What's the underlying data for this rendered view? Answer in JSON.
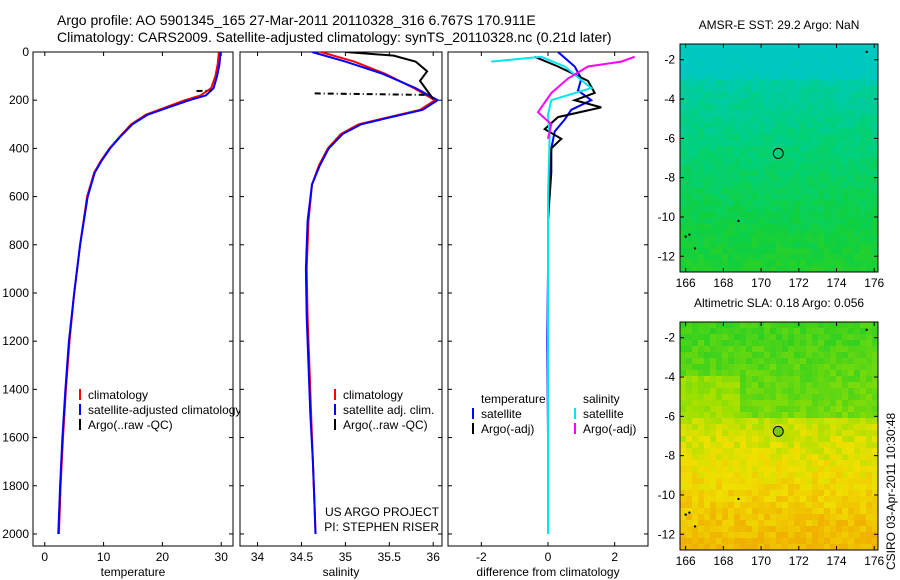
{
  "header": {
    "line1": "Argo profile: AO 5901345_165 27-Mar-2011 20110328_316 6.767S 170.911E",
    "line2": "Climatology: CARS2009. Satellite-adjusted climatology: synTS_20110328.nc (0.21d later)"
  },
  "side_stamp": "CSIRO 03-Apr-2011 10:30:48",
  "colors": {
    "climatology": "#ff0000",
    "satellite": "#0000ff",
    "argo": "#000000",
    "salinity_satellite": "#00e5ee",
    "salinity_argo": "#ff00ff"
  },
  "chart_data": [
    {
      "type": "line",
      "panel": "temperature",
      "xlabel": "temperature",
      "ylabel": "",
      "xlim": [
        -2,
        32
      ],
      "ylim": [
        2050,
        0
      ],
      "xticks": [
        0,
        10,
        20,
        30
      ],
      "yticks": [
        0,
        200,
        400,
        600,
        800,
        1000,
        1200,
        1400,
        1600,
        1800,
        2000
      ],
      "legend": [
        "climatology",
        "satellite-adjusted climatology",
        "Argo(..raw -QC)"
      ],
      "series": [
        {
          "name": "climatology",
          "color": "#ff0000",
          "x": [
            29.6,
            29.4,
            29.0,
            28.3,
            26.5,
            23.8,
            20.5,
            17.2,
            14.7,
            12.8,
            11.0,
            9.6,
            8.4,
            7.2,
            6.0,
            5.0,
            4.2,
            3.6,
            3.1,
            2.7,
            2.4
          ],
          "y": [
            0,
            50,
            100,
            150,
            180,
            200,
            230,
            260,
            300,
            350,
            400,
            450,
            500,
            600,
            800,
            1000,
            1200,
            1400,
            1600,
            1800,
            2000
          ]
        },
        {
          "name": "satellite-adjusted climatology",
          "color": "#0000ff",
          "x": [
            29.9,
            29.7,
            29.3,
            28.7,
            27.4,
            24.6,
            21.0,
            17.5,
            14.9,
            12.9,
            11.1,
            9.7,
            8.5,
            7.3,
            6.0,
            5.0,
            4.1,
            3.5,
            3.0,
            2.6,
            2.3
          ],
          "y": [
            0,
            50,
            100,
            150,
            180,
            200,
            230,
            260,
            300,
            350,
            400,
            450,
            500,
            600,
            800,
            1000,
            1200,
            1400,
            1600,
            1800,
            2000
          ]
        },
        {
          "name": "Argo(..raw -QC)",
          "color": "#000000",
          "dashed": true,
          "x": [
            25.8,
            28.4
          ],
          "y": [
            162,
            160
          ]
        }
      ]
    },
    {
      "type": "line",
      "panel": "salinity",
      "xlabel": "salinity",
      "ylabel": "",
      "xlim": [
        33.8,
        36.1
      ],
      "ylim": [
        2050,
        0
      ],
      "xticks": [
        34,
        34.5,
        35,
        35.5,
        36
      ],
      "legend": [
        "climatology",
        "satellite adj. clim.",
        "Argo(..raw -QC)"
      ],
      "annotation": [
        "US ARGO PROJECT",
        "PI: STEPHEN RISER"
      ],
      "series": [
        {
          "name": "climatology",
          "color": "#ff0000",
          "x": [
            34.72,
            35.1,
            35.45,
            35.78,
            36.02,
            35.85,
            35.5,
            35.15,
            34.95,
            34.8,
            34.7,
            34.62,
            34.58,
            34.56,
            34.57,
            34.59,
            34.61,
            34.63,
            34.65,
            34.66
          ],
          "y": [
            0,
            40,
            90,
            150,
            200,
            240,
            270,
            300,
            340,
            400,
            470,
            550,
            700,
            900,
            1100,
            1300,
            1500,
            1700,
            1900,
            2000
          ]
        },
        {
          "name": "satellite adj. clim.",
          "color": "#0000ff",
          "x": [
            34.62,
            35.0,
            35.42,
            35.8,
            36.05,
            35.88,
            35.52,
            35.18,
            34.97,
            34.81,
            34.71,
            34.62,
            34.57,
            34.55,
            34.56,
            34.58,
            34.6,
            34.63,
            34.65,
            34.66
          ],
          "y": [
            0,
            40,
            90,
            150,
            200,
            240,
            270,
            300,
            340,
            400,
            470,
            550,
            700,
            900,
            1100,
            1300,
            1500,
            1700,
            1900,
            2000
          ]
        },
        {
          "name": "Argo(..raw -QC)",
          "color": "#000000",
          "x": [
            35.0,
            35.55,
            35.8,
            35.93,
            35.85,
            36.0
          ],
          "y": [
            0,
            15,
            40,
            80,
            120,
            195
          ]
        },
        {
          "name": "Argo(..raw -QC)",
          "color": "#000000",
          "dashed": true,
          "x": [
            34.65,
            35.92
          ],
          "y": [
            172,
            178
          ]
        }
      ]
    },
    {
      "type": "line",
      "panel": "difference",
      "xlabel": "difference from climatology",
      "ylabel": "",
      "xlim": [
        -3,
        3
      ],
      "ylim": [
        2050,
        0
      ],
      "xticks": [
        -2,
        0,
        2
      ],
      "legend": [
        "temperature",
        "satellite",
        "Argo(-adj)",
        "salinity",
        "satellite",
        "Argo(-adj)"
      ],
      "series": [
        {
          "name": "temperature satellite",
          "color": "#0000ff",
          "x": [
            0.3,
            0.8,
            1.0,
            0.9,
            1.3,
            0.7,
            0.5,
            0.2,
            0.1,
            0.05,
            0.0,
            0.0,
            -0.02,
            0.0,
            0.0
          ],
          "y": [
            0,
            60,
            110,
            160,
            200,
            240,
            280,
            330,
            400,
            500,
            700,
            900,
            1200,
            1600,
            2000
          ]
        },
        {
          "name": "temperature Argo(-adj)",
          "color": "#000000",
          "x": [
            -0.4,
            0.3,
            1.2,
            1.4,
            0.8,
            1.6,
            0.3,
            -0.1,
            0.4,
            0.1,
            0.1,
            0.0,
            0.0,
            0.0
          ],
          "y": [
            20,
            60,
            120,
            170,
            200,
            230,
            270,
            320,
            360,
            400,
            500,
            700,
            1000,
            1400
          ]
        },
        {
          "name": "salinity satellite",
          "color": "#00e5ee",
          "x": [
            -1.7,
            -0.2,
            0.5,
            1.3,
            0.1,
            0.0,
            0.05,
            0.0,
            0.0,
            0.0
          ],
          "y": [
            40,
            20,
            60,
            150,
            200,
            260,
            350,
            600,
            1200,
            2000
          ]
        },
        {
          "name": "salinity Argo(-adj)",
          "color": "#ff00ff",
          "x": [
            2.6,
            2.2,
            1.2,
            0.6,
            0.1,
            -0.3,
            0.1,
            0.0
          ],
          "y": [
            20,
            40,
            60,
            110,
            170,
            250,
            300,
            360
          ]
        }
      ]
    },
    {
      "type": "heatmap",
      "panel": "AMSR-E SST",
      "title": "AMSR-E SST: 29.2 Argo: NaN",
      "xlim": [
        165.7,
        176.2
      ],
      "ylim": [
        -12.8,
        -1.2
      ],
      "xticks": [
        166,
        168,
        170,
        172,
        174,
        176
      ],
      "yticks": [
        -2,
        -4,
        -6,
        -8,
        -10,
        -12
      ],
      "marker": {
        "lon": 170.911,
        "lat": -6.767
      },
      "colorscale": [
        "#00c8c0",
        "#00d080",
        "#10d040",
        "#40d010"
      ]
    },
    {
      "type": "heatmap",
      "panel": "Altimetric SLA",
      "title": "Altimetric SLA: 0.18 Argo: 0.056",
      "xlim": [
        165.7,
        176.2
      ],
      "ylim": [
        -12.8,
        -1.2
      ],
      "xticks": [
        166,
        168,
        170,
        172,
        174,
        176
      ],
      "yticks": [
        -2,
        -4,
        -6,
        -8,
        -10,
        -12
      ],
      "marker": {
        "lon": 170.911,
        "lat": -6.767
      },
      "colorscale": [
        "#30d020",
        "#a0e000",
        "#f0e000",
        "#f0b000"
      ]
    }
  ]
}
